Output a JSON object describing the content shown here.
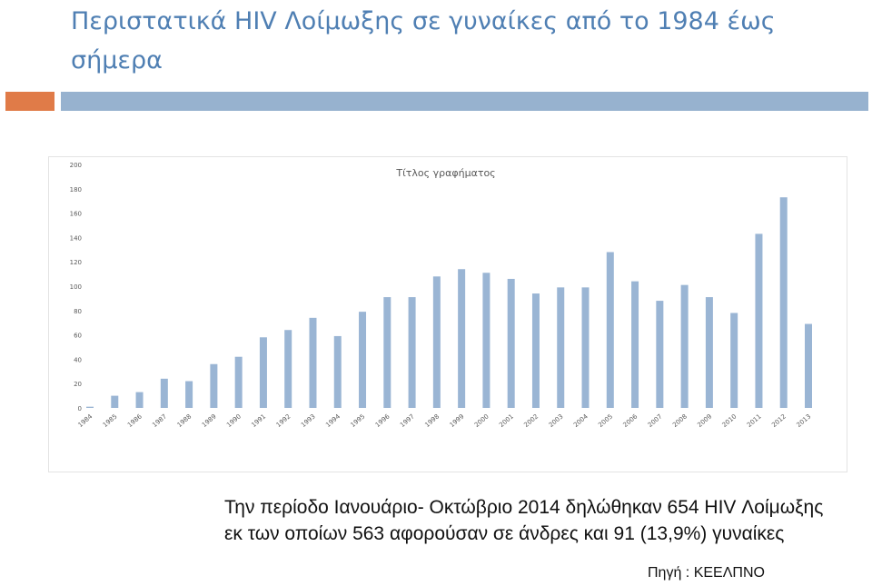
{
  "slide": {
    "title": "Περιστατικά HIV Λοίμωξης σε γυναίκες από το 1984 έως σήμερα",
    "body": "Την περίοδο Ιανουάριο- Οκτώβριο 2014 δηλώθηκαν 654 HIV Λοίμωξης εκ των οποίων 563 αφορούσαν σε άνδρες και 91 (13,9%) γυναίκες",
    "source": "Πηγή : ΚΕΕΛΠΝΟ"
  },
  "colors": {
    "title": "#4f7fb3",
    "accent_orange": "#e07b48",
    "accent_blue": "#97b2cf",
    "bar": "#9ab5d4",
    "grid": "#e6e6e6"
  },
  "chart_data": {
    "type": "bar",
    "title": "Τίτλος γραφήματος",
    "xlabel": "",
    "ylabel": "",
    "ylim": [
      0,
      200
    ],
    "yticks": [
      0,
      20,
      40,
      60,
      80,
      100,
      120,
      140,
      160,
      180,
      200
    ],
    "grid": false,
    "legend": "none",
    "categories": [
      "1984",
      "1985",
      "1986",
      "1987",
      "1988",
      "1989",
      "1990",
      "1991",
      "1992",
      "1993",
      "1994",
      "1995",
      "1996",
      "1997",
      "1998",
      "1999",
      "2000",
      "2001",
      "2002",
      "2003",
      "2004",
      "2005",
      "2006",
      "2007",
      "2008",
      "2009",
      "2010",
      "2011",
      "2012",
      "2013"
    ],
    "values": [
      1,
      10,
      13,
      24,
      22,
      36,
      42,
      58,
      64,
      74,
      59,
      79,
      91,
      91,
      108,
      114,
      111,
      106,
      94,
      99,
      99,
      128,
      104,
      88,
      101,
      91,
      78,
      143,
      173,
      69
    ]
  }
}
